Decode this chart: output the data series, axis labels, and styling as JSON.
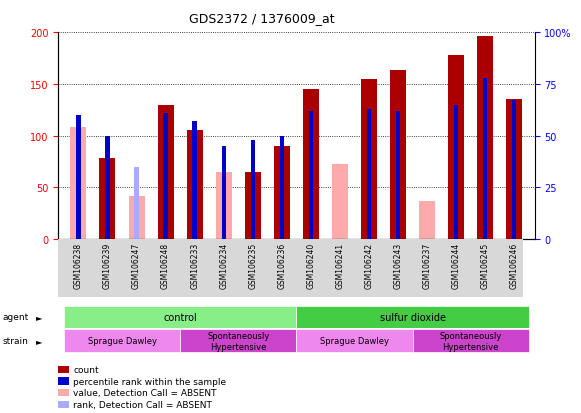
{
  "title": "GDS2372 / 1376009_at",
  "samples": [
    "GSM106238",
    "GSM106239",
    "GSM106247",
    "GSM106248",
    "GSM106233",
    "GSM106234",
    "GSM106235",
    "GSM106236",
    "GSM106240",
    "GSM106241",
    "GSM106242",
    "GSM106243",
    "GSM106237",
    "GSM106244",
    "GSM106245",
    "GSM106246"
  ],
  "count": [
    0,
    78,
    0,
    130,
    105,
    0,
    65,
    90,
    145,
    0,
    155,
    163,
    0,
    178,
    196,
    135
  ],
  "count_absent": [
    108,
    0,
    42,
    0,
    0,
    65,
    0,
    0,
    0,
    73,
    0,
    0,
    37,
    0,
    0,
    0
  ],
  "percentile": [
    60,
    50,
    0,
    61,
    57,
    45,
    48,
    50,
    62,
    0,
    63,
    62,
    0,
    65,
    78,
    67
  ],
  "percentile_absent": [
    0,
    0,
    35,
    0,
    0,
    0,
    0,
    0,
    0,
    0,
    0,
    0,
    0,
    0,
    0,
    0
  ],
  "ylim_left": [
    0,
    200
  ],
  "ylim_right": [
    0,
    100
  ],
  "yticks_left": [
    0,
    50,
    100,
    150,
    200
  ],
  "yticks_right": [
    0,
    25,
    50,
    75,
    100
  ],
  "ytick_labels_right": [
    "0",
    "25",
    "50",
    "75",
    "100%"
  ],
  "color_count": "#aa0000",
  "color_count_absent": "#ffaaaa",
  "color_percentile": "#0000cc",
  "color_percentile_absent": "#aaaaff",
  "agent_groups": [
    {
      "label": "control",
      "start": 0,
      "end": 8,
      "color": "#88ee88"
    },
    {
      "label": "sulfur dioxide",
      "start": 8,
      "end": 16,
      "color": "#44cc44"
    }
  ],
  "strain_groups": [
    {
      "label": "Sprague Dawley",
      "start": 0,
      "end": 4,
      "color": "#ee88ee"
    },
    {
      "label": "Spontaneously\nHypertensive",
      "start": 4,
      "end": 8,
      "color": "#cc44cc"
    },
    {
      "label": "Sprague Dawley",
      "start": 8,
      "end": 12,
      "color": "#ee88ee"
    },
    {
      "label": "Spontaneously\nHypertensive",
      "start": 12,
      "end": 16,
      "color": "#cc44cc"
    }
  ],
  "legend_items": [
    {
      "label": "count",
      "color": "#aa0000"
    },
    {
      "label": "percentile rank within the sample",
      "color": "#0000cc"
    },
    {
      "label": "value, Detection Call = ABSENT",
      "color": "#ffaaaa"
    },
    {
      "label": "rank, Detection Call = ABSENT",
      "color": "#aaaaff"
    }
  ]
}
